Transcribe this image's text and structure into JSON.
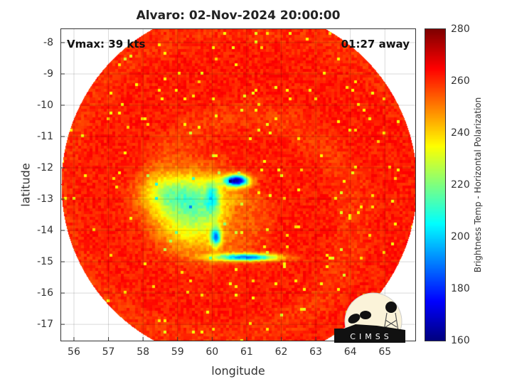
{
  "chart_data": {
    "type": "heatmap",
    "title": "Alvaro: 02-Nov-2024 20:00:00",
    "xlabel": "longitude",
    "ylabel": "latitude",
    "xlim": [
      55.63,
      65.88
    ],
    "ylim": [
      -17.52,
      -7.57
    ],
    "xticks": [
      "56",
      "57",
      "58",
      "59",
      "60",
      "61",
      "62",
      "63",
      "64",
      "65"
    ],
    "yticks": [
      "-8",
      "-9",
      "-10",
      "-11",
      "-12",
      "-13",
      "-14",
      "-15",
      "-16",
      "-17"
    ],
    "grid": true,
    "annotations": {
      "vmax": "Vmax: 39 kts",
      "away": "01:27 away"
    },
    "colorbar": {
      "label": "Brightness Temp - Horizontal Polarization",
      "colormap": "jet",
      "range": [
        160,
        280
      ],
      "ticks": [
        "160",
        "180",
        "200",
        "220",
        "240",
        "260",
        "280"
      ]
    },
    "features": {
      "storm_center": [
        60.7,
        -12.4
      ],
      "min_value": 165,
      "background_value": 262
    }
  },
  "logo": {
    "text": "CIMSS"
  }
}
